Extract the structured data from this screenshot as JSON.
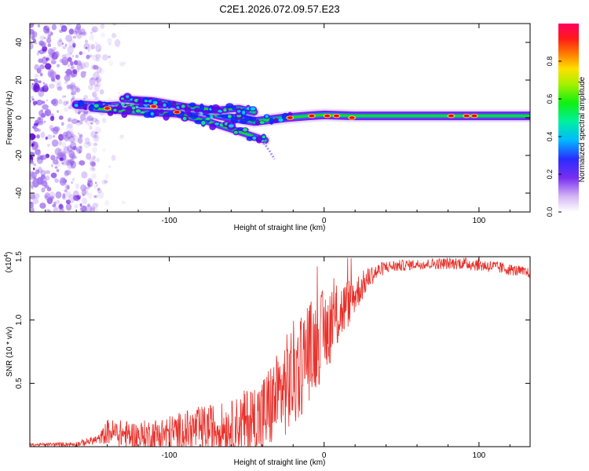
{
  "title": "C2E1.2026.072.09.57.E23",
  "colors": {
    "line": "#e8302a",
    "axis": "#000000",
    "track_peak": "#e8003a",
    "track_mid": "#17e600",
    "track_edge": "#6a00e8",
    "scatter": "#6a10e0"
  },
  "chart_data": [
    {
      "type": "heatmap",
      "name": "spectrogram",
      "xlabel": "Height of straight line (km)",
      "ylabel": "Frequency (Hz)",
      "xlim": [
        -190,
        133
      ],
      "ylim": [
        -50,
        50
      ],
      "x_ticks": [
        -100,
        0,
        100
      ],
      "x_tick_labels": [
        "-100",
        "0",
        "100"
      ],
      "y_ticks": [
        -40,
        -20,
        0,
        20,
        40
      ],
      "y_tick_labels": [
        "-40",
        "-20",
        "0",
        "20",
        "40"
      ],
      "colorbar": {
        "label": "Normalized spectral amplitude",
        "range": [
          0,
          1
        ],
        "ticks": [
          0.0,
          0.2,
          0.4,
          0.6,
          0.8
        ],
        "tick_labels": [
          "0.0",
          "0.2",
          "0.4",
          "0.6",
          "0.8"
        ]
      },
      "noise_region_x": [
        -190,
        -145
      ],
      "tracks": [
        {
          "name": "main",
          "points": [
            [
              -160,
              7
            ],
            [
              -140,
              6
            ],
            [
              -120,
              7
            ],
            [
              -100,
              5
            ],
            [
              -80,
              3
            ],
            [
              -60,
              0
            ],
            [
              -45,
              -2
            ],
            [
              -35,
              -1
            ],
            [
              -25,
              0
            ],
            [
              -10,
              1
            ],
            [
              0,
              1.5
            ],
            [
              20,
              1
            ],
            [
              60,
              1
            ],
            [
              100,
              1
            ],
            [
              133,
              1
            ]
          ]
        },
        {
          "name": "lower",
          "points": [
            [
              -150,
              5
            ],
            [
              -120,
              3
            ],
            [
              -95,
              2
            ],
            [
              -75,
              -2
            ],
            [
              -60,
              -6
            ],
            [
              -45,
              -10
            ],
            [
              -38,
              -12
            ]
          ]
        },
        {
          "name": "upper",
          "points": [
            [
              -130,
              10
            ],
            [
              -110,
              9
            ],
            [
              -90,
              6
            ],
            [
              -70,
              4
            ],
            [
              -55,
              5
            ],
            [
              -45,
              3
            ]
          ]
        }
      ],
      "hot_spots": [
        {
          "x": -140,
          "y": 5
        },
        {
          "x": -110,
          "y": 6
        },
        {
          "x": -95,
          "y": 3
        },
        {
          "x": -22,
          "y": 0
        },
        {
          "x": -8,
          "y": 1
        },
        {
          "x": 2,
          "y": 1
        },
        {
          "x": 8,
          "y": 1
        },
        {
          "x": 18,
          "y": 0
        },
        {
          "x": 82,
          "y": 1
        },
        {
          "x": 92,
          "y": 1
        },
        {
          "x": 97,
          "y": 1
        }
      ]
    },
    {
      "type": "line",
      "name": "snr",
      "xlabel": "Height of straight line (km)",
      "ylabel": "SNR (10 * v/v)",
      "y_multiplier": "(x10",
      "y_multiplier_exp": "4",
      "y_multiplier_close": ")",
      "xlim": [
        -190,
        133
      ],
      "ylim": [
        0,
        1.5
      ],
      "x_ticks": [
        -100,
        0,
        100
      ],
      "x_tick_labels": [
        "-100",
        "0",
        "100"
      ],
      "y_ticks": [
        0.5,
        1.0,
        1.5
      ],
      "y_tick_labels": [
        "0.5",
        "1.0",
        "1.5"
      ],
      "series": [
        {
          "name": "SNR",
          "envelope": [
            {
              "x": -190,
              "base": 0.015,
              "amp": 0.01
            },
            {
              "x": -160,
              "base": 0.02,
              "amp": 0.02
            },
            {
              "x": -145,
              "base": 0.06,
              "amp": 0.04
            },
            {
              "x": -140,
              "base": 0.12,
              "amp": 0.1
            },
            {
              "x": -120,
              "base": 0.08,
              "amp": 0.12
            },
            {
              "x": -100,
              "base": 0.1,
              "amp": 0.15
            },
            {
              "x": -80,
              "base": 0.14,
              "amp": 0.18
            },
            {
              "x": -60,
              "base": 0.16,
              "amp": 0.2
            },
            {
              "x": -40,
              "base": 0.22,
              "amp": 0.35
            },
            {
              "x": -30,
              "base": 0.4,
              "amp": 0.35
            },
            {
              "x": -20,
              "base": 0.55,
              "amp": 0.45
            },
            {
              "x": -10,
              "base": 0.75,
              "amp": 0.4
            },
            {
              "x": 0,
              "base": 0.9,
              "amp": 0.35
            },
            {
              "x": 10,
              "base": 1.05,
              "amp": 0.25
            },
            {
              "x": 20,
              "base": 1.2,
              "amp": 0.15
            },
            {
              "x": 30,
              "base": 1.35,
              "amp": 0.08
            },
            {
              "x": 40,
              "base": 1.42,
              "amp": 0.05
            },
            {
              "x": 60,
              "base": 1.44,
              "amp": 0.04
            },
            {
              "x": 90,
              "base": 1.45,
              "amp": 0.05
            },
            {
              "x": 110,
              "base": 1.42,
              "amp": 0.05
            },
            {
              "x": 133,
              "base": 1.37,
              "amp": 0.04
            }
          ]
        }
      ]
    }
  ]
}
